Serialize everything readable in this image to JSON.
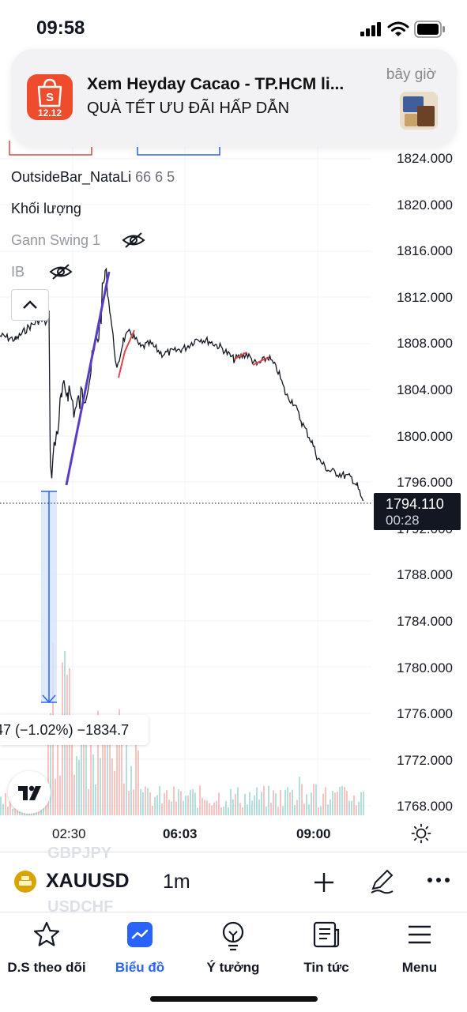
{
  "status_bar": {
    "time": "09:58"
  },
  "notification": {
    "app_badge": "12.12",
    "title": "Xem Heyday Cacao - TP.HCM li...",
    "body": "QUÀ TẾT ƯU ĐÃI HẤP DẪN",
    "time": "bây giờ"
  },
  "indicators": {
    "outside_bar": {
      "name": "OutsideBar_NataLi",
      "params": "66 6 5"
    },
    "volume": "Khối lượng",
    "gann": "Gann Swing 1",
    "ib": "IB"
  },
  "price_axis": [
    "1824.000",
    "1820.000",
    "1816.000",
    "1812.000",
    "1808.000",
    "1804.000",
    "1800.000",
    "1796.000",
    "1792.000",
    "1788.000",
    "1784.000",
    "1780.000",
    "1776.000",
    "1772.000",
    "1768.000"
  ],
  "current_price": {
    "price": "1794.110",
    "countdown": "00:28"
  },
  "time_axis": [
    "02:30",
    "06:03",
    "09:00"
  ],
  "measure": {
    "label": "47 (−1.02%) −1834.7"
  },
  "colors": {
    "accent": "#2962ff",
    "up": "#26a69a",
    "down": "#ef5350",
    "trendline": "#5b3cc4",
    "dark": "#131722"
  },
  "symbol_bar": {
    "symbol": "XAUUSD",
    "interval": "1m",
    "scroll_above": "GBPJPY",
    "scroll_below": "USDCHF"
  },
  "bottom_nav": [
    {
      "label": "D.S theo dõi",
      "icon": "star-icon"
    },
    {
      "label": "Biểu đồ",
      "icon": "chart-icon",
      "active": true
    },
    {
      "label": "Ý tưởng",
      "icon": "lightbulb-icon"
    },
    {
      "label": "Tin tức",
      "icon": "news-icon"
    },
    {
      "label": "Menu",
      "icon": "menu-icon"
    }
  ]
}
